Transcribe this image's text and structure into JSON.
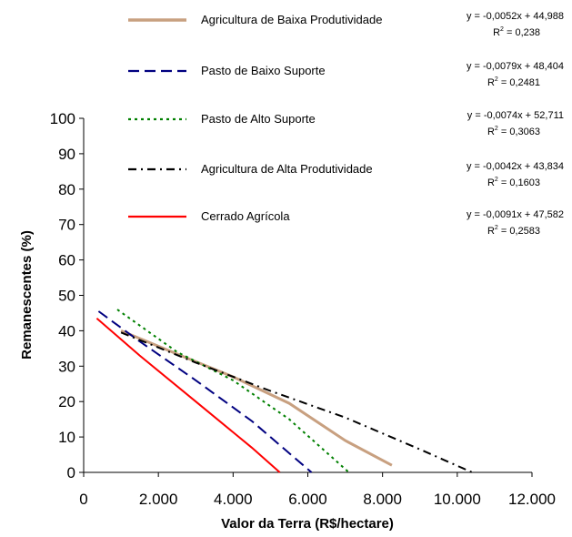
{
  "chart_data": {
    "type": "line",
    "xlabel": "Valor da Terra (R$/hectare)",
    "ylabel": "Remanescentes (%)",
    "xlim": [
      0,
      12000
    ],
    "ylim": [
      0,
      100
    ],
    "x_ticks": [
      0,
      2000,
      4000,
      6000,
      8000,
      10000,
      12000
    ],
    "x_tick_labels": [
      "0",
      "2.000",
      "4.000",
      "6.000",
      "8.000",
      "10.000",
      "12.000"
    ],
    "y_ticks": [
      0,
      10,
      20,
      30,
      40,
      50,
      60,
      70,
      80,
      90,
      100
    ],
    "y_tick_labels": [
      "0",
      "10",
      "20",
      "30",
      "40",
      "50",
      "60",
      "70",
      "80",
      "90",
      "100"
    ],
    "grid": false,
    "legend_position": "top",
    "series": [
      {
        "name": "Agricultura de Baixa Produtividade",
        "color": "#c8a080",
        "dash": "solid",
        "x": [
          1000,
          2600,
          4000,
          5500,
          7000,
          8250
        ],
        "y": [
          40,
          33,
          27,
          19.5,
          9,
          2
        ],
        "equation": "y = -0,0052x + 44,988",
        "r2_label": "R",
        "r2_sup": "2",
        "r2_value": " = 0,238"
      },
      {
        "name": "Pasto de Baixo Suporte",
        "color": "#000080",
        "dash": "long-dash",
        "x": [
          400,
          1500,
          3000,
          4500,
          6100
        ],
        "y": [
          45.5,
          37,
          26,
          14.5,
          0
        ],
        "equation": "y = -0,0079x + 48,404",
        "r2_label": "R",
        "r2_sup": "2",
        "r2_value": " = 0,2481"
      },
      {
        "name": "Pasto de Alto Suporte",
        "color": "#008000",
        "dash": "dotted",
        "x": [
          900,
          2500,
          4000,
          5500,
          7100
        ],
        "y": [
          46,
          34,
          26,
          15,
          0
        ],
        "equation": "y = -0,0074x + 52,711",
        "r2_label": "R",
        "r2_sup": "2",
        "r2_value": " = 0,3063"
      },
      {
        "name": "Agricultura de Alta Produtividade",
        "color": "#000000",
        "dash": "dash-dot",
        "x": [
          1000,
          3000,
          5000,
          7000,
          9000,
          10400
        ],
        "y": [
          39.5,
          31,
          23,
          15.5,
          6.5,
          0
        ],
        "equation": "y = -0,0042x + 43,834",
        "r2_label": "R",
        "r2_sup": "2",
        "r2_value": " = 0,1603"
      },
      {
        "name": "Cerrado Agrícola",
        "color": "#ff0000",
        "dash": "solid",
        "x": [
          350,
          1500,
          3000,
          4500,
          5250
        ],
        "y": [
          43.5,
          33,
          20,
          7,
          0
        ],
        "equation": "y = -0,0091x + 47,582",
        "r2_label": "R",
        "r2_sup": "2",
        "r2_value": " = 0,2583"
      }
    ]
  }
}
